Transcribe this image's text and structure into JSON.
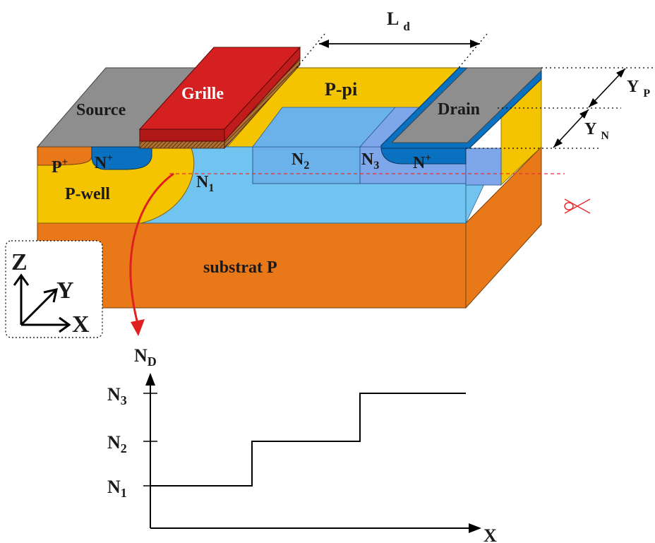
{
  "labels": {
    "source": "Source",
    "grille": "Grille",
    "p_pi": "P-pi",
    "drain": "Drain",
    "p_plus": "P",
    "p_plus_sup": "+",
    "n_plus_left": "N",
    "n_plus_left_sup": "+",
    "n_plus_right": "N",
    "n_plus_right_sup": "+",
    "n1": "N",
    "n1_sub": "1",
    "n2": "N",
    "n2_sub": "2",
    "n3": "N",
    "n3_sub": "3",
    "p_well": "P-well",
    "substrat": "substrat P",
    "ld": "L",
    "ld_sub": "d",
    "yp": "Y",
    "yp_sub": "P",
    "yn": "Y",
    "yn_sub": "N",
    "axis_z": "Z",
    "axis_y": "Y",
    "axis_x": "X"
  },
  "profile": {
    "ylabel": "N",
    "ylabel_sub": "D",
    "xlabel": "X",
    "ticks": [
      {
        "label": "N",
        "sub": "3"
      },
      {
        "label": "N",
        "sub": "2"
      },
      {
        "label": "N",
        "sub": "1"
      }
    ]
  },
  "icons": {
    "cut": "scissors-icon"
  },
  "colors": {
    "metal": "#8e8e8e",
    "gate": "#d42020",
    "ppi": "#f5c400",
    "nplus": "#0a70c0",
    "nlight": "#72c4f0",
    "n2": "#6cb2ea",
    "n3": "#7ea6ea",
    "substrate": "#e87818",
    "pplus": "#e87818",
    "red_line": "#e83030"
  }
}
